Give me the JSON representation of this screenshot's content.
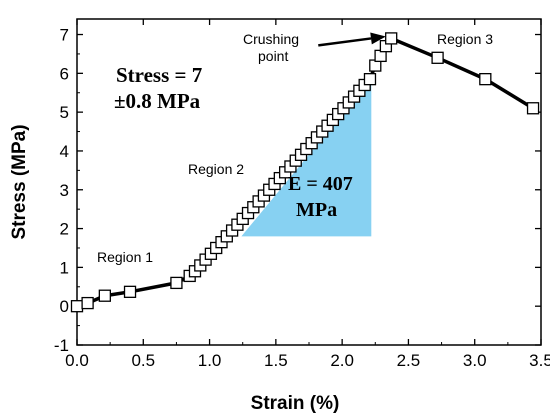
{
  "chart_data": {
    "type": "scatter",
    "title": "",
    "xlabel": "Strain (%)",
    "ylabel": "Stress (MPa)",
    "xlim": [
      0.0,
      3.5
    ],
    "ylim": [
      -1,
      7.4
    ],
    "xticks": [
      "0.0",
      "0.5",
      "1.0",
      "1.5",
      "2.0",
      "2.5",
      "3.0",
      "3.5"
    ],
    "yticks": [
      "-1",
      "0",
      "1",
      "2",
      "3",
      "4",
      "5",
      "6",
      "7"
    ],
    "marker": "open-square",
    "line_color": "#000000",
    "series": [
      {
        "x": [
          0.0,
          0.08,
          0.21,
          0.4,
          0.75,
          0.85,
          0.89,
          0.93,
          0.97,
          1.01,
          1.05,
          1.09,
          1.13,
          1.17,
          1.21,
          1.25,
          1.29,
          1.33,
          1.37,
          1.41,
          1.45,
          1.49,
          1.53,
          1.57,
          1.61,
          1.65,
          1.69,
          1.73,
          1.77,
          1.81,
          1.85,
          1.89,
          1.93,
          1.97,
          2.01,
          2.05,
          2.09,
          2.13,
          2.17,
          2.21,
          2.25,
          2.29,
          2.33,
          2.37,
          2.72,
          3.08,
          3.44
        ],
        "y": [
          0.0,
          0.08,
          0.27,
          0.37,
          0.6,
          0.78,
          0.9,
          1.05,
          1.2,
          1.35,
          1.5,
          1.65,
          1.8,
          1.95,
          2.1,
          2.25,
          2.4,
          2.55,
          2.7,
          2.85,
          3.0,
          3.15,
          3.3,
          3.45,
          3.6,
          3.75,
          3.9,
          4.05,
          4.2,
          4.35,
          4.5,
          4.65,
          4.8,
          4.95,
          5.1,
          5.25,
          5.4,
          5.55,
          5.7,
          5.85,
          6.2,
          6.45,
          6.7,
          6.9,
          6.4,
          5.85,
          5.1
        ]
      }
    ],
    "annotations": {
      "region1": "Region 1",
      "region2": "Region 2",
      "region3": "Region 3",
      "crushing": [
        "Crushing",
        "point"
      ],
      "stress": [
        "Stress = 7",
        "±0.8 MPa"
      ],
      "modulus": [
        "E = 407",
        "MPa"
      ]
    },
    "modulus_triangle": {
      "color": "#87d1f2",
      "vertices": [
        [
          1.24,
          1.8
        ],
        [
          2.22,
          1.8
        ],
        [
          2.22,
          5.85
        ]
      ]
    },
    "crushing_arrow": {
      "from": [
        1.82,
        6.72
      ],
      "to": [
        2.33,
        6.95
      ]
    }
  }
}
